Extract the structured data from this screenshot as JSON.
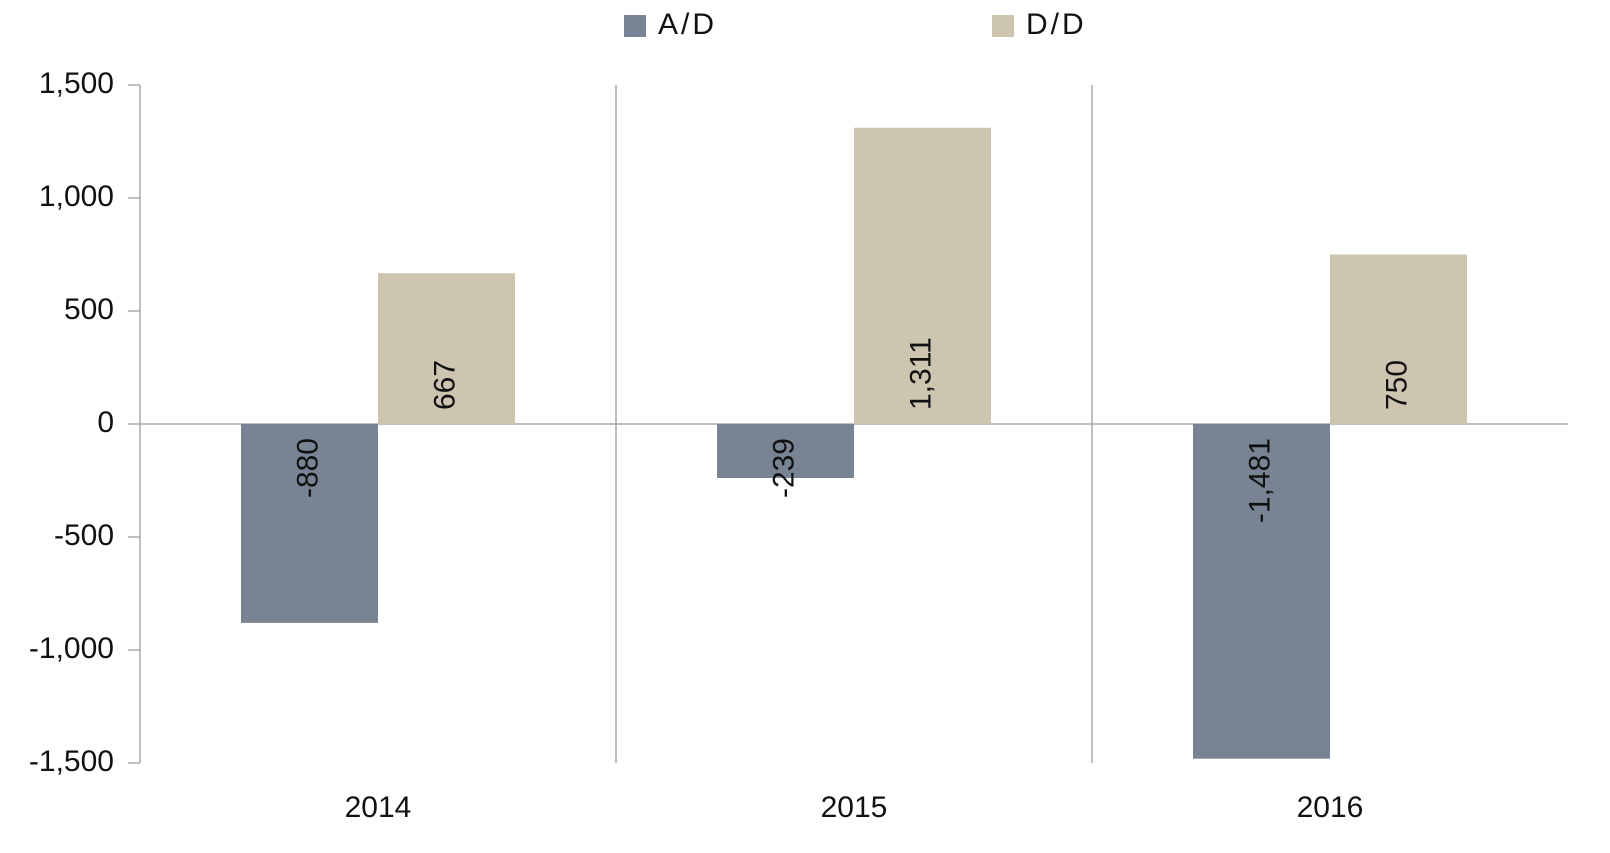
{
  "chart_data": {
    "type": "bar",
    "categories": [
      "2014",
      "2015",
      "2016"
    ],
    "series": [
      {
        "name": "A/D",
        "color": "#788494",
        "values": [
          -880,
          -239,
          -1481
        ],
        "value_labels": [
          "-880",
          "-239",
          "-1,481"
        ]
      },
      {
        "name": "D/D",
        "color": "#cdc5b0",
        "values": [
          667,
          1311,
          750
        ],
        "value_labels": [
          "667",
          "1,311",
          "750"
        ]
      }
    ],
    "ylim": [
      -1500,
      1500
    ],
    "yticks": [
      {
        "value": -1500,
        "label": "-1,500"
      },
      {
        "value": -1000,
        "label": "-1,000"
      },
      -500,
      0,
      500,
      {
        "value": 1000,
        "label": "1,000"
      },
      {
        "value": 1500,
        "label": "1,500"
      }
    ],
    "legend": "top"
  }
}
